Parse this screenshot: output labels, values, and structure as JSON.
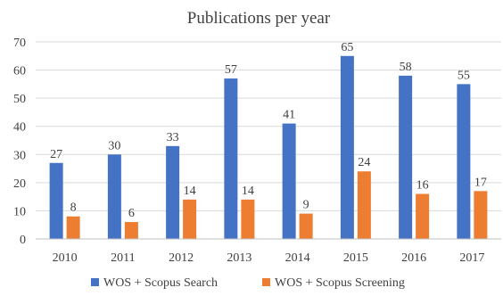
{
  "chart_data": {
    "type": "bar",
    "title": "Publications per year",
    "xlabel": "",
    "ylabel": "",
    "categories": [
      "2010",
      "2011",
      "2012",
      "2013",
      "2014",
      "2015",
      "2016",
      "2017"
    ],
    "series": [
      {
        "name": "WOS + Scopus Search",
        "color": "#4472C4",
        "values": [
          27,
          30,
          33,
          57,
          41,
          65,
          58,
          55
        ]
      },
      {
        "name": "WOS + Scopus Screening",
        "color": "#ED7D31",
        "values": [
          8,
          6,
          14,
          14,
          9,
          24,
          16,
          17
        ]
      }
    ],
    "ylim": [
      0,
      70
    ],
    "yticks": [
      0,
      10,
      20,
      30,
      40,
      50,
      60,
      70
    ],
    "grid": true,
    "legend": "bottom"
  }
}
